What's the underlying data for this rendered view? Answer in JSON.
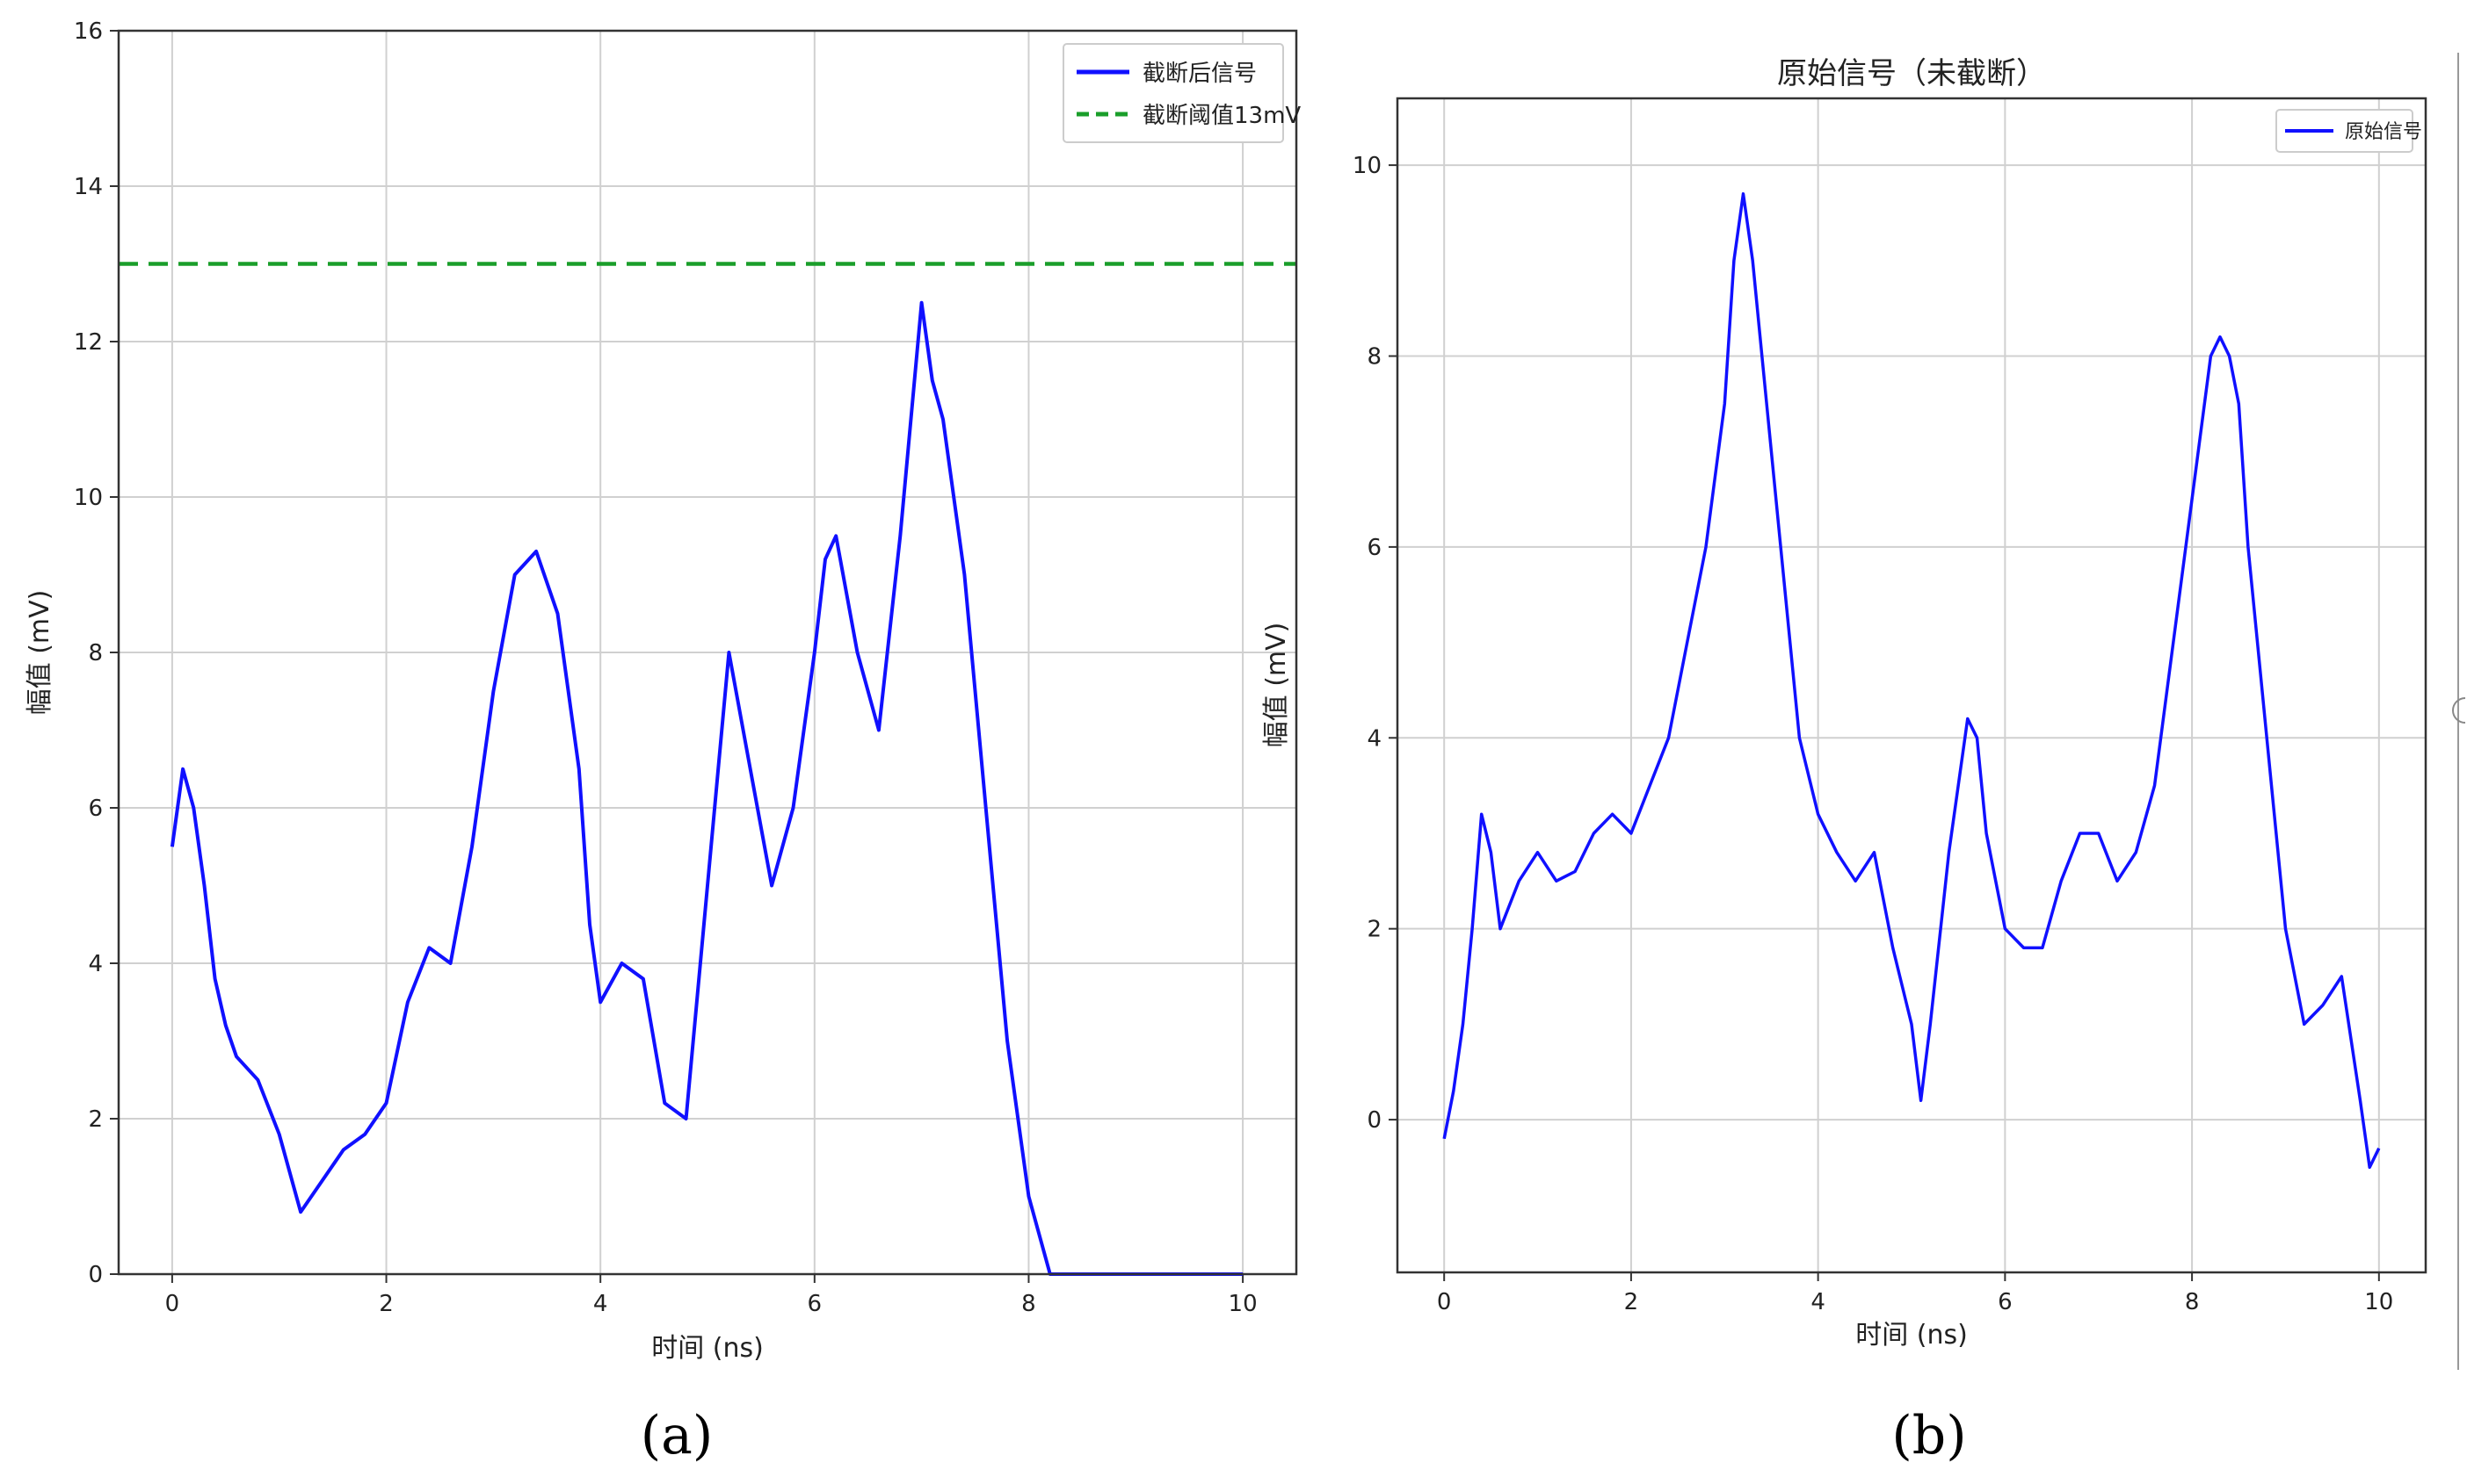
{
  "colors": {
    "series": "#1010ff",
    "threshold": "#1a9e2a",
    "grid": "#d0d0d0",
    "axes": "#333333"
  },
  "chart_data": [
    {
      "type": "line",
      "caption": "(a)",
      "title": "",
      "xlabel": "时间 (ns)",
      "ylabel": "幅值 (mV)",
      "xlim": [
        -0.5,
        10.5
      ],
      "ylim": [
        0,
        16
      ],
      "xticks": [
        0,
        2,
        4,
        6,
        8,
        10
      ],
      "yticks": [
        0,
        2,
        4,
        6,
        8,
        10,
        12,
        14,
        16
      ],
      "grid": true,
      "legend_position": "top-right",
      "series": [
        {
          "name": "截断后信号",
          "style": "solid",
          "x": [
            0,
            0.1,
            0.2,
            0.3,
            0.4,
            0.5,
            0.6,
            0.8,
            1.0,
            1.2,
            1.4,
            1.6,
            1.8,
            2.0,
            2.2,
            2.4,
            2.6,
            2.8,
            3.0,
            3.2,
            3.4,
            3.6,
            3.8,
            3.9,
            4.0,
            4.2,
            4.4,
            4.6,
            4.8,
            5.0,
            5.2,
            5.4,
            5.6,
            5.8,
            6.0,
            6.1,
            6.2,
            6.4,
            6.6,
            6.8,
            7.0,
            7.1,
            7.2,
            7.4,
            7.6,
            7.8,
            8.0,
            8.2,
            8.4,
            9.0,
            10.0
          ],
          "y": [
            5.5,
            6.5,
            6.0,
            5.0,
            3.8,
            3.2,
            2.8,
            2.5,
            1.8,
            0.8,
            1.2,
            1.6,
            1.8,
            2.2,
            3.5,
            4.2,
            4.0,
            5.5,
            7.5,
            9.0,
            9.3,
            8.5,
            6.5,
            4.5,
            3.5,
            4.0,
            3.8,
            2.2,
            2.0,
            5.0,
            8.0,
            6.5,
            5.0,
            6.0,
            8.0,
            9.2,
            9.5,
            8.0,
            7.0,
            9.5,
            12.5,
            11.5,
            11.0,
            9.0,
            6.0,
            3.0,
            1.0,
            0.0,
            0.0,
            0.0,
            0.0
          ]
        },
        {
          "name": "截断阈值13mV",
          "style": "dashed",
          "x": [
            -0.5,
            10.5
          ],
          "y": [
            13,
            13
          ]
        }
      ]
    },
    {
      "type": "line",
      "caption": "(b)",
      "title": "原始信号（未截断）",
      "xlabel": "时间 (ns)",
      "ylabel": "幅值 (mV)",
      "xlim": [
        -0.5,
        10.5
      ],
      "ylim": [
        -1.6,
        10.7
      ],
      "xticks": [
        0,
        2,
        4,
        6,
        8,
        10
      ],
      "yticks": [
        0,
        2,
        4,
        6,
        8,
        10
      ],
      "grid": true,
      "legend_position": "top-right",
      "series": [
        {
          "name": "原始信号",
          "style": "solid",
          "x": [
            0,
            0.1,
            0.2,
            0.3,
            0.4,
            0.5,
            0.6,
            0.8,
            1.0,
            1.2,
            1.4,
            1.6,
            1.8,
            2.0,
            2.2,
            2.4,
            2.6,
            2.8,
            3.0,
            3.1,
            3.2,
            3.3,
            3.4,
            3.6,
            3.8,
            4.0,
            4.2,
            4.4,
            4.6,
            4.8,
            5.0,
            5.1,
            5.2,
            5.4,
            5.6,
            5.7,
            5.8,
            6.0,
            6.2,
            6.4,
            6.6,
            6.8,
            7.0,
            7.2,
            7.4,
            7.6,
            7.8,
            8.0,
            8.2,
            8.3,
            8.4,
            8.5,
            8.6,
            8.8,
            9.0,
            9.2,
            9.4,
            9.6,
            9.8,
            9.9,
            10.0
          ],
          "y": [
            -0.2,
            0.3,
            1.0,
            2.0,
            3.2,
            2.8,
            2.0,
            2.5,
            2.8,
            2.5,
            2.6,
            3.0,
            3.2,
            3.0,
            3.5,
            4.0,
            5.0,
            6.0,
            7.5,
            9.0,
            9.7,
            9.0,
            8.0,
            6.0,
            4.0,
            3.2,
            2.8,
            2.5,
            2.8,
            1.8,
            1.0,
            0.2,
            1.0,
            2.8,
            4.2,
            4.0,
            3.0,
            2.0,
            1.8,
            1.8,
            2.5,
            3.0,
            3.0,
            2.5,
            2.8,
            3.5,
            5.0,
            6.5,
            8.0,
            8.2,
            8.0,
            7.5,
            6.0,
            4.0,
            2.0,
            1.0,
            1.2,
            1.5,
            0.2,
            -0.5,
            -0.3
          ]
        }
      ]
    }
  ]
}
